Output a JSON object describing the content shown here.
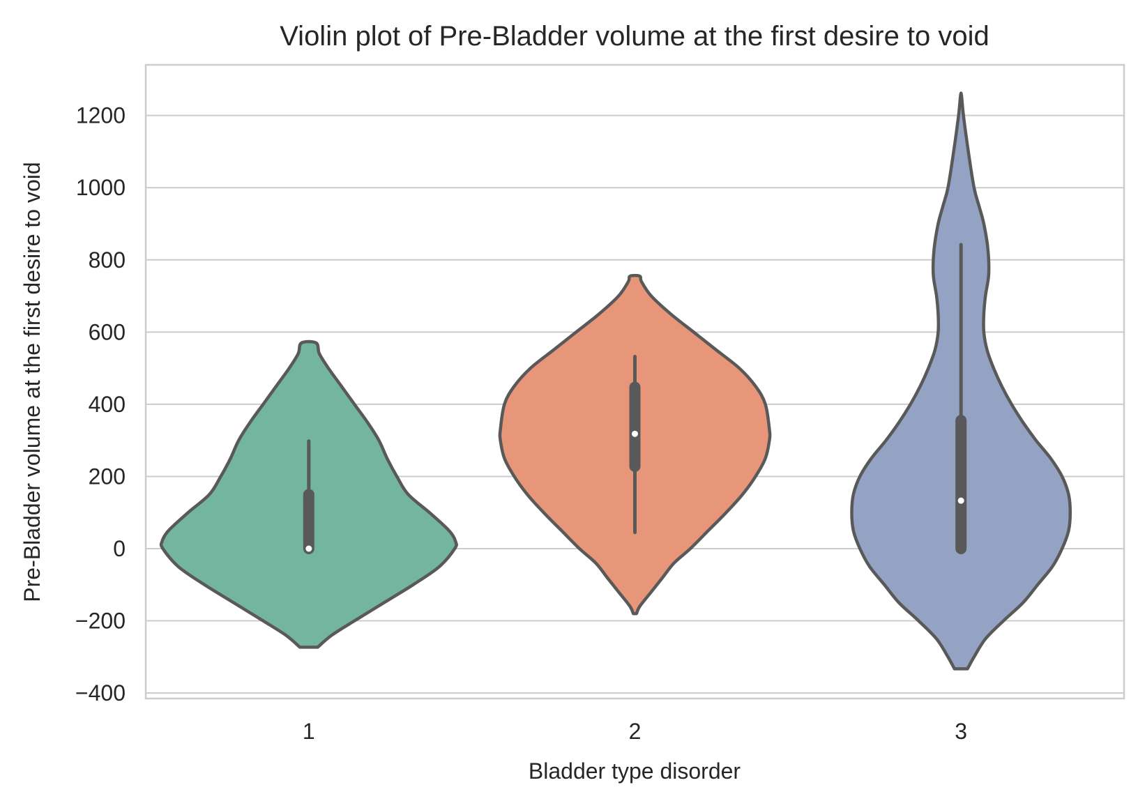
{
  "chart_data": {
    "type": "violin",
    "title": "Violin plot of Pre-Bladder volume at the first desire to void",
    "xlabel": "Bladder type disorder",
    "ylabel": "Pre-Bladder volume at the first desire to void",
    "ylim": [
      -420,
      1340
    ],
    "yticks": [
      -400,
      -200,
      0,
      200,
      400,
      600,
      800,
      1000,
      1200
    ],
    "ytick_labels": [
      "−400",
      "−200",
      "0",
      "200",
      "400",
      "600",
      "800",
      "1000",
      "1200"
    ],
    "categories": [
      "1",
      "2",
      "3"
    ],
    "grid": true,
    "violins": [
      {
        "category": "1",
        "color": "#73b59f",
        "min": -273,
        "max": 570,
        "whisker_low": 0,
        "whisker_high": 298,
        "q1": 0,
        "q3": 150,
        "median": 0,
        "profile": [
          [
            -273,
            0.055
          ],
          [
            -240,
            0.14
          ],
          [
            -200,
            0.28
          ],
          [
            -150,
            0.46
          ],
          [
            -100,
            0.64
          ],
          [
            -50,
            0.8
          ],
          [
            0,
            0.895
          ],
          [
            20,
            0.9
          ],
          [
            50,
            0.86
          ],
          [
            100,
            0.74
          ],
          [
            150,
            0.61
          ],
          [
            200,
            0.54
          ],
          [
            250,
            0.48
          ],
          [
            300,
            0.43
          ],
          [
            350,
            0.36
          ],
          [
            400,
            0.28
          ],
          [
            450,
            0.2
          ],
          [
            500,
            0.12
          ],
          [
            540,
            0.065
          ],
          [
            570,
            0.045
          ]
        ]
      },
      {
        "category": "2",
        "color": "#e8967a",
        "min": -180,
        "max": 755,
        "whisker_low": 45,
        "whisker_high": 532,
        "q1": 228,
        "q3": 447,
        "median": 318,
        "profile": [
          [
            -180,
            0.01
          ],
          [
            -160,
            0.03
          ],
          [
            -120,
            0.1
          ],
          [
            -80,
            0.17
          ],
          [
            -40,
            0.24
          ],
          [
            0,
            0.34
          ],
          [
            50,
            0.45
          ],
          [
            100,
            0.56
          ],
          [
            150,
            0.66
          ],
          [
            200,
            0.74
          ],
          [
            250,
            0.8
          ],
          [
            300,
            0.825
          ],
          [
            330,
            0.825
          ],
          [
            400,
            0.8
          ],
          [
            450,
            0.74
          ],
          [
            500,
            0.64
          ],
          [
            550,
            0.5
          ],
          [
            600,
            0.36
          ],
          [
            650,
            0.22
          ],
          [
            700,
            0.1
          ],
          [
            740,
            0.04
          ],
          [
            755,
            0.03
          ]
        ]
      },
      {
        "category": "3",
        "color": "#94a3c3",
        "min": -333,
        "max": 1255,
        "whisker_low": 0,
        "whisker_high": 842,
        "q1": 0,
        "q3": 355,
        "median": 133,
        "profile": [
          [
            -333,
            0.04
          ],
          [
            -300,
            0.08
          ],
          [
            -250,
            0.15
          ],
          [
            -200,
            0.26
          ],
          [
            -150,
            0.38
          ],
          [
            -100,
            0.47
          ],
          [
            -50,
            0.56
          ],
          [
            0,
            0.62
          ],
          [
            50,
            0.66
          ],
          [
            100,
            0.67
          ],
          [
            150,
            0.66
          ],
          [
            200,
            0.62
          ],
          [
            250,
            0.55
          ],
          [
            300,
            0.46
          ],
          [
            350,
            0.38
          ],
          [
            400,
            0.31
          ],
          [
            450,
            0.25
          ],
          [
            500,
            0.2
          ],
          [
            550,
            0.16
          ],
          [
            600,
            0.14
          ],
          [
            650,
            0.14
          ],
          [
            700,
            0.15
          ],
          [
            760,
            0.17
          ],
          [
            830,
            0.165
          ],
          [
            900,
            0.14
          ],
          [
            950,
            0.11
          ],
          [
            1000,
            0.08
          ],
          [
            1100,
            0.045
          ],
          [
            1200,
            0.015
          ],
          [
            1255,
            0.003
          ]
        ]
      }
    ]
  }
}
